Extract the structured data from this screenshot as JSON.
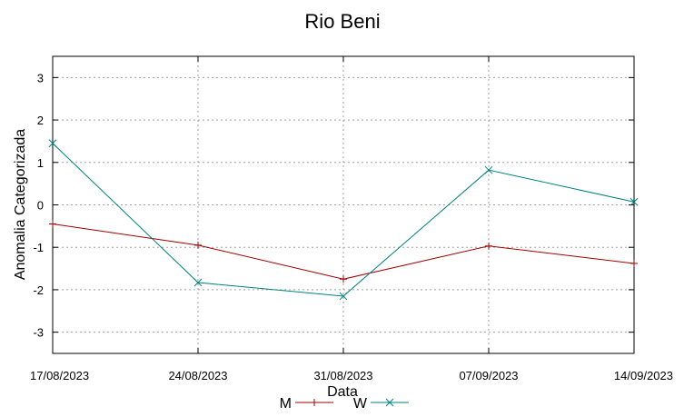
{
  "chart_data": {
    "type": "line",
    "title": "Rio Beni",
    "xlabel": "Data",
    "ylabel": "Anomalia Categorizada",
    "x": [
      "17/08/2023",
      "24/08/2023",
      "31/08/2023",
      "07/09/2023",
      "14/09/2023"
    ],
    "ylim": [
      -3.5,
      3.5
    ],
    "yticks": [
      -3,
      -2,
      -1,
      0,
      1,
      2,
      3
    ],
    "grid": true,
    "legend_position": "bottom-center",
    "series": [
      {
        "name": "M",
        "color": "#a00000",
        "marker": "plus",
        "values": [
          -0.45,
          -0.95,
          -1.75,
          -0.97,
          -1.38
        ]
      },
      {
        "name": "W",
        "color": "#008080",
        "marker": "cross",
        "values": [
          1.45,
          -1.83,
          -2.15,
          0.82,
          0.07
        ]
      }
    ]
  }
}
